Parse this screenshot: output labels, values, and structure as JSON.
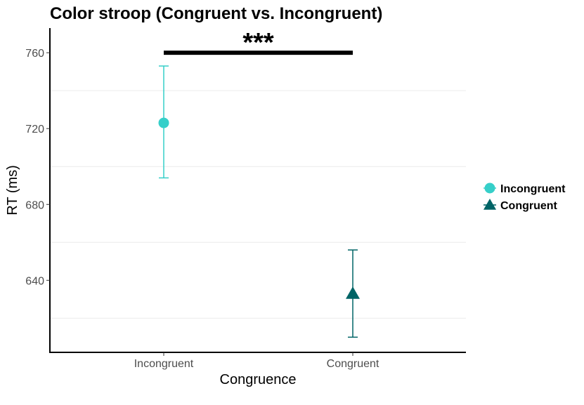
{
  "chart_data": {
    "type": "scatter",
    "title": "Color stroop (Congruent vs. Incongruent)",
    "xlabel": "Congruence",
    "ylabel": "RT (ms)",
    "categories": [
      "Incongruent",
      "Congruent"
    ],
    "ylim": [
      602,
      773
    ],
    "yticks": [
      640,
      680,
      720,
      760
    ],
    "grid": "horizontal minor lines only",
    "series": [
      {
        "name": "Incongruent",
        "category": "Incongruent",
        "value": 723,
        "error_low": 694,
        "error_high": 753,
        "color": "#36CFC9",
        "marker": "circle"
      },
      {
        "name": "Congruent",
        "category": "Congruent",
        "value": 633,
        "error_low": 610,
        "error_high": 656,
        "color": "#006466",
        "marker": "triangle"
      }
    ],
    "annotation": {
      "text": "***",
      "from": "Incongruent",
      "to": "Congruent",
      "y": 760
    },
    "legend": {
      "position": "right",
      "items": [
        "Incongruent",
        "Congruent"
      ]
    }
  }
}
